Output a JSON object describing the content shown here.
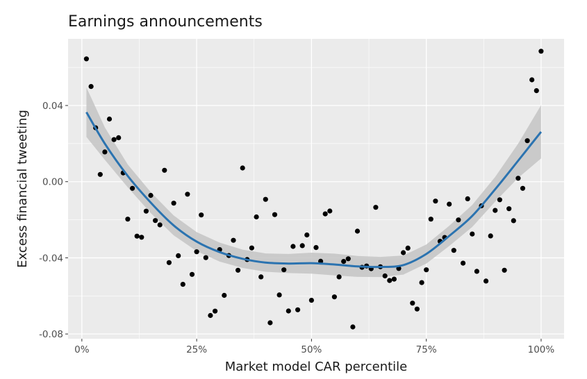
{
  "chart_data": {
    "type": "scatter",
    "title": "Earnings announcements",
    "xlabel": "Market model CAR percentile",
    "ylabel": "Excess financial tweeting",
    "xlim": [
      -0.03,
      1.05
    ],
    "ylim": [
      -0.0825,
      0.075
    ],
    "x_ticks": [
      0,
      0.25,
      0.5,
      0.75,
      1.0
    ],
    "x_tick_labels": [
      "0%",
      "25%",
      "50%",
      "75%",
      "100%"
    ],
    "y_ticks": [
      -0.08,
      -0.04,
      0.0,
      0.04
    ],
    "y_tick_labels": [
      "-0.08",
      "-0.04",
      "0.00",
      "0.04"
    ],
    "grid": true,
    "colors": {
      "points": "#000000",
      "smooth": "#2b73b0",
      "ribbon": "#c4c4c4",
      "panel": "#ebebeb"
    },
    "points": [
      [
        0.01,
        0.0645
      ],
      [
        0.02,
        0.05
      ],
      [
        0.03,
        0.0283
      ],
      [
        0.04,
        0.0038
      ],
      [
        0.05,
        0.0156
      ],
      [
        0.06,
        0.0329
      ],
      [
        0.07,
        0.0221
      ],
      [
        0.08,
        0.0231
      ],
      [
        0.09,
        0.0046
      ],
      [
        0.1,
        -0.0197
      ],
      [
        0.11,
        -0.0035
      ],
      [
        0.12,
        -0.0286
      ],
      [
        0.13,
        -0.0292
      ],
      [
        0.14,
        -0.0155
      ],
      [
        0.15,
        -0.0072
      ],
      [
        0.16,
        -0.0204
      ],
      [
        0.17,
        -0.0227
      ],
      [
        0.18,
        0.006
      ],
      [
        0.19,
        -0.0425
      ],
      [
        0.2,
        -0.0113
      ],
      [
        0.21,
        -0.0389
      ],
      [
        0.22,
        -0.0539
      ],
      [
        0.23,
        -0.0066
      ],
      [
        0.24,
        -0.0487
      ],
      [
        0.25,
        -0.0368
      ],
      [
        0.26,
        -0.0175
      ],
      [
        0.27,
        -0.0399
      ],
      [
        0.28,
        -0.0703
      ],
      [
        0.29,
        -0.068
      ],
      [
        0.3,
        -0.0357
      ],
      [
        0.31,
        -0.0597
      ],
      [
        0.32,
        -0.0388
      ],
      [
        0.33,
        -0.0308
      ],
      [
        0.34,
        -0.0465
      ],
      [
        0.35,
        0.0072
      ],
      [
        0.36,
        -0.0409
      ],
      [
        0.37,
        -0.0348
      ],
      [
        0.38,
        -0.0185
      ],
      [
        0.39,
        -0.05
      ],
      [
        0.4,
        -0.0093
      ],
      [
        0.41,
        -0.0741
      ],
      [
        0.42,
        -0.0173
      ],
      [
        0.43,
        -0.0595
      ],
      [
        0.44,
        -0.0463
      ],
      [
        0.45,
        -0.0679
      ],
      [
        0.46,
        -0.034
      ],
      [
        0.47,
        -0.0673
      ],
      [
        0.48,
        -0.0336
      ],
      [
        0.49,
        -0.028
      ],
      [
        0.5,
        -0.0623
      ],
      [
        0.51,
        -0.0346
      ],
      [
        0.52,
        -0.0418
      ],
      [
        0.53,
        -0.0169
      ],
      [
        0.54,
        -0.0154
      ],
      [
        0.55,
        -0.0605
      ],
      [
        0.56,
        -0.05
      ],
      [
        0.57,
        -0.0419
      ],
      [
        0.58,
        -0.0405
      ],
      [
        0.59,
        -0.0763
      ],
      [
        0.6,
        -0.026
      ],
      [
        0.61,
        -0.045
      ],
      [
        0.62,
        -0.0443
      ],
      [
        0.63,
        -0.0457
      ],
      [
        0.64,
        -0.0135
      ],
      [
        0.65,
        -0.0447
      ],
      [
        0.66,
        -0.0495
      ],
      [
        0.67,
        -0.0519
      ],
      [
        0.68,
        -0.0512
      ],
      [
        0.69,
        -0.0456
      ],
      [
        0.7,
        -0.0373
      ],
      [
        0.71,
        -0.0349
      ],
      [
        0.72,
        -0.0638
      ],
      [
        0.73,
        -0.0669
      ],
      [
        0.74,
        -0.053
      ],
      [
        0.75,
        -0.0463
      ],
      [
        0.76,
        -0.0197
      ],
      [
        0.77,
        -0.0102
      ],
      [
        0.78,
        -0.0313
      ],
      [
        0.79,
        -0.0293
      ],
      [
        0.8,
        -0.0118
      ],
      [
        0.81,
        -0.0361
      ],
      [
        0.82,
        -0.0201
      ],
      [
        0.83,
        -0.0428
      ],
      [
        0.84,
        -0.009
      ],
      [
        0.85,
        -0.0275
      ],
      [
        0.86,
        -0.0471
      ],
      [
        0.87,
        -0.0127
      ],
      [
        0.88,
        -0.0522
      ],
      [
        0.89,
        -0.0285
      ],
      [
        0.9,
        -0.0151
      ],
      [
        0.91,
        -0.0095
      ],
      [
        0.92,
        -0.0465
      ],
      [
        0.93,
        -0.0142
      ],
      [
        0.94,
        -0.0205
      ],
      [
        0.95,
        0.0018
      ],
      [
        0.96,
        -0.0035
      ],
      [
        0.97,
        0.0215
      ],
      [
        0.98,
        0.0535
      ],
      [
        0.99,
        0.0478
      ],
      [
        1.0,
        0.0685
      ]
    ],
    "smooth_fit": [
      [
        0.01,
        0.0365
      ],
      [
        0.05,
        0.02
      ],
      [
        0.1,
        0.003
      ],
      [
        0.15,
        -0.011
      ],
      [
        0.2,
        -0.023
      ],
      [
        0.25,
        -0.0315
      ],
      [
        0.3,
        -0.037
      ],
      [
        0.35,
        -0.0405
      ],
      [
        0.4,
        -0.0425
      ],
      [
        0.45,
        -0.043
      ],
      [
        0.5,
        -0.0428
      ],
      [
        0.55,
        -0.0435
      ],
      [
        0.6,
        -0.0445
      ],
      [
        0.65,
        -0.0448
      ],
      [
        0.7,
        -0.0438
      ],
      [
        0.75,
        -0.038
      ],
      [
        0.8,
        -0.0285
      ],
      [
        0.85,
        -0.018
      ],
      [
        0.9,
        -0.004
      ],
      [
        0.95,
        0.011
      ],
      [
        1.0,
        0.0262
      ]
    ],
    "smooth_se": [
      [
        0.01,
        0.013
      ],
      [
        0.05,
        0.0085
      ],
      [
        0.1,
        0.006
      ],
      [
        0.15,
        0.0055
      ],
      [
        0.2,
        0.0052
      ],
      [
        0.25,
        0.005
      ],
      [
        0.3,
        0.005
      ],
      [
        0.35,
        0.0048
      ],
      [
        0.4,
        0.0048
      ],
      [
        0.45,
        0.005
      ],
      [
        0.5,
        0.0055
      ],
      [
        0.55,
        0.0057
      ],
      [
        0.6,
        0.0055
      ],
      [
        0.65,
        0.0053
      ],
      [
        0.7,
        0.005
      ],
      [
        0.75,
        0.005
      ],
      [
        0.8,
        0.0053
      ],
      [
        0.85,
        0.0058
      ],
      [
        0.9,
        0.0065
      ],
      [
        0.95,
        0.009
      ],
      [
        1.0,
        0.014
      ]
    ]
  }
}
